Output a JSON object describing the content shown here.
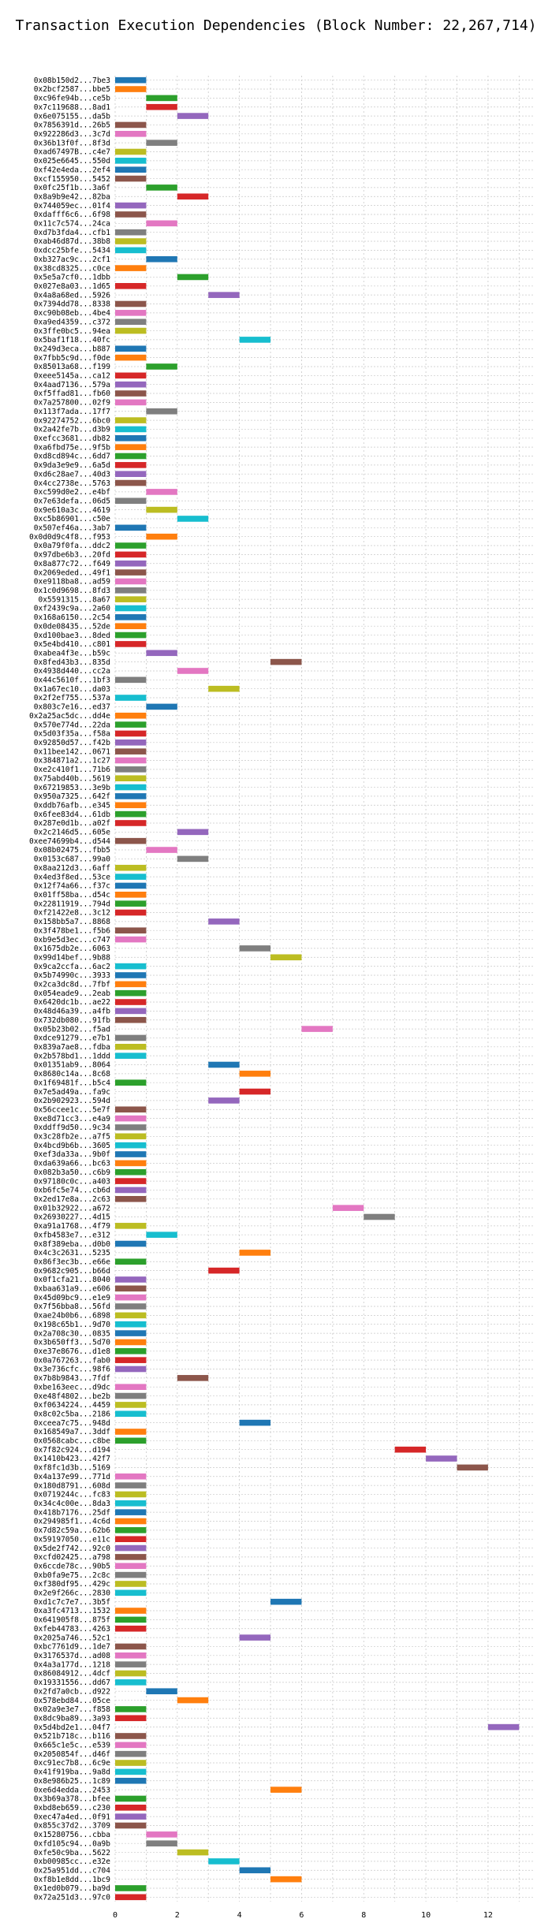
{
  "chart_data": {
    "type": "bar",
    "title": "Transaction Execution Dependencies (Block Number: 22,267,714)",
    "xlabel": "",
    "ylabel": "",
    "xlim": [
      0,
      13.5
    ],
    "xticks": [
      0,
      2,
      4,
      6,
      8,
      10,
      12
    ],
    "grid": "dotted",
    "palette": [
      "#1f77b4",
      "#ff7f0e",
      "#2ca02c",
      "#d62728",
      "#9467bd",
      "#8c564b",
      "#e377c2",
      "#7f7f7f",
      "#bcbd22",
      "#17becf"
    ],
    "transactions": [
      [
        "0x08b150d2...7be3",
        0,
        0
      ],
      [
        "0x2bcf2587...bbe5",
        0,
        1
      ],
      [
        "0xc96fe94b...ce5b",
        1,
        2
      ],
      [
        "0x7c119688...8ad1",
        1,
        3
      ],
      [
        "0x6e075155...da5b",
        2,
        4
      ],
      [
        "0x7856391d...26b5",
        0,
        5
      ],
      [
        "0x922286d3...3c7d",
        0,
        6
      ],
      [
        "0x36b13f0f...8f3d",
        1,
        7
      ],
      [
        "0xad67497B...c4e7",
        0,
        8
      ],
      [
        "0x025e6645...550d",
        0,
        9
      ],
      [
        "0xf42e4eda...2ef4",
        0,
        0
      ],
      [
        "0xcf155950...5452",
        0,
        5
      ],
      [
        "0x0fc25f1b...3a6f",
        1,
        2
      ],
      [
        "0x8a9b9e42...82ba",
        2,
        3
      ],
      [
        "0x744059ec...01f4",
        0,
        4
      ],
      [
        "0xdafff6c6...6f98",
        0,
        5
      ],
      [
        "0x11c7c574...24ca",
        1,
        6
      ],
      [
        "0xd7b3fda4...cfb1",
        0,
        7
      ],
      [
        "0xab46d87d...38b8",
        0,
        8
      ],
      [
        "0xdcc25bfe...5434",
        0,
        9
      ],
      [
        "0xb327ac9c...2cf1",
        1,
        0
      ],
      [
        "0x38cd8325...c0ce",
        0,
        1
      ],
      [
        "0x5e5a7cf0...1dbb",
        2,
        2
      ],
      [
        "0x027e8a03...1d65",
        0,
        3
      ],
      [
        "0x4a8a68ed...5926",
        3,
        4
      ],
      [
        "0x7394dd78...8338",
        0,
        5
      ],
      [
        "0xc90b08eb...4be4",
        0,
        6
      ],
      [
        "0xa9ed4359...c372",
        0,
        7
      ],
      [
        "0x3ffe0bc5...94ea",
        0,
        8
      ],
      [
        "0x5baf1f18...40fc",
        4,
        9
      ],
      [
        "0x249d3eca...b887",
        0,
        0
      ],
      [
        "0x7fbb5c9d...f0de",
        0,
        1
      ],
      [
        "0x85013a68...f199",
        1,
        2
      ],
      [
        "0xeee5145a...ca12",
        0,
        3
      ],
      [
        "0x4aad7136...579a",
        0,
        4
      ],
      [
        "0xf5ffad81...fb60",
        0,
        5
      ],
      [
        "0x7a257800...02f9",
        0,
        6
      ],
      [
        "0x113f7ada...17f7",
        1,
        7
      ],
      [
        "0x92274752...6bc0",
        0,
        8
      ],
      [
        "0x2a42fe7b...d3b9",
        0,
        9
      ],
      [
        "0xefcc3681...db82",
        0,
        0
      ],
      [
        "0xa6fbd75e...9f5b",
        0,
        1
      ],
      [
        "0xd8cd894c...6dd7",
        0,
        2
      ],
      [
        "0x9da3e9e9...6a5d",
        0,
        3
      ],
      [
        "0xd6c28ae7...40d3",
        0,
        4
      ],
      [
        "0x4cc2738e...5763",
        0,
        5
      ],
      [
        "0xc599d0e2...e4bf",
        1,
        6
      ],
      [
        "0x7e63defa...06d5",
        0,
        7
      ],
      [
        "0x9e610a3c...4619",
        1,
        8
      ],
      [
        "0xc5b86901...c50e",
        2,
        9
      ],
      [
        "0x507ef46a...3ab7",
        0,
        0
      ],
      [
        "0x0d0d9c4f8...f953",
        1,
        1
      ],
      [
        "0x0a79f0fa...ddc2",
        0,
        2
      ],
      [
        "0x97dbe6b3...20fd",
        0,
        3
      ],
      [
        "0x8a877c72...f649",
        0,
        4
      ],
      [
        "0x2069eded...49f1",
        0,
        5
      ],
      [
        "0xe9118ba8...ad59",
        0,
        6
      ],
      [
        "0x1c0d9698...8fd3",
        0,
        7
      ],
      [
        "0x5591315...8a67",
        0,
        8
      ],
      [
        "0xf2439c9a...2a60",
        0,
        9
      ],
      [
        "0x168a6150...2c54",
        0,
        0
      ],
      [
        "0x0de08435...52de",
        0,
        1
      ],
      [
        "0xd100bae3...8ded",
        0,
        2
      ],
      [
        "0x5e4bd410...c801",
        0,
        3
      ],
      [
        "0xabea4f3e...b59c",
        1,
        4
      ],
      [
        "0x8fed43b3...835d",
        5,
        5
      ],
      [
        "0x4938d440...cc2a",
        2,
        6
      ],
      [
        "0x44c5610f...1bf3",
        0,
        7
      ],
      [
        "0x1a67ec10...da03",
        3,
        8
      ],
      [
        "0x2f2ef755...537a",
        0,
        9
      ],
      [
        "0x803c7e16...ed37",
        1,
        0
      ],
      [
        "0x2a25ac5dc...dd4e",
        0,
        1
      ],
      [
        "0x570e774d...22da",
        0,
        2
      ],
      [
        "0x5d03f35a...f58a",
        0,
        3
      ],
      [
        "0x92850d57...f42b",
        0,
        4
      ],
      [
        "0x11bee142...0671",
        0,
        5
      ],
      [
        "0x384871a2...1c27",
        0,
        6
      ],
      [
        "0xe2c410f1...71b6",
        0,
        7
      ],
      [
        "0x75abd40b...5619",
        0,
        8
      ],
      [
        "0x67219853...3e9b",
        0,
        9
      ],
      [
        "0x950a7325...642f",
        0,
        0
      ],
      [
        "0xddb76afb...e345",
        0,
        1
      ],
      [
        "0x6fee83d4...61db",
        0,
        2
      ],
      [
        "0x287e0d1b...a02f",
        0,
        3
      ],
      [
        "0x2c2146d5...605e",
        2,
        4
      ],
      [
        "0xee74699b4...d544",
        0,
        5
      ],
      [
        "0x08b02475...fbb5",
        1,
        6
      ],
      [
        "0x0153c687...99a0",
        2,
        7
      ],
      [
        "0x8aa212d3...6aff",
        0,
        8
      ],
      [
        "0x4ed3f8ed...53ce",
        0,
        9
      ],
      [
        "0x12f74a66...f37c",
        0,
        0
      ],
      [
        "0x01ff58ba...d54c",
        0,
        1
      ],
      [
        "0x22811919...794d",
        0,
        2
      ],
      [
        "0xf21422e8...3c12",
        0,
        3
      ],
      [
        "0x158bb5a7...8868",
        3,
        4
      ],
      [
        "0x3f478be1...f5b6",
        0,
        5
      ],
      [
        "0xb9e5d3ec...c747",
        0,
        6
      ],
      [
        "0x1675db2e...6063",
        4,
        7
      ],
      [
        "0x99d14bef...9b88",
        5,
        8
      ],
      [
        "0x9ca2ccfa...6ac2",
        0,
        9
      ],
      [
        "0x5b74990c...3933",
        0,
        0
      ],
      [
        "0x2ca3dc8d...7fbf",
        0,
        1
      ],
      [
        "0x054eade9...2eab",
        0,
        2
      ],
      [
        "0x6420dc1b...ae22",
        0,
        3
      ],
      [
        "0x48d46a39...a4fb",
        0,
        4
      ],
      [
        "0x732db080...91fb",
        0,
        5
      ],
      [
        "0x05b23b02...f5ad",
        6,
        6
      ],
      [
        "0xdce91279...e7b1",
        0,
        7
      ],
      [
        "0x839a7ae8...fdba",
        0,
        8
      ],
      [
        "0x2b578bd1...1ddd",
        0,
        9
      ],
      [
        "0x01351ab9...8064",
        3,
        0
      ],
      [
        "0x8680c14a...8c68",
        4,
        1
      ],
      [
        "0x1f69481f...b5c4",
        0,
        2
      ],
      [
        "0x7e5ad49a...fa9c",
        4,
        3
      ],
      [
        "0x2b902923...594d",
        3,
        4
      ],
      [
        "0x56ccee1c...5e7f",
        0,
        5
      ],
      [
        "0xe8d71cc3...e4a9",
        0,
        6
      ],
      [
        "0xddff9d50...9c34",
        0,
        7
      ],
      [
        "0x3c28fb2e...a7f5",
        0,
        8
      ],
      [
        "0x4bcd9b6b...3605",
        0,
        9
      ],
      [
        "0xef3da33a...9b0f",
        0,
        0
      ],
      [
        "0xda639a66...bc63",
        0,
        1
      ],
      [
        "0x082b3a50...c6b9",
        0,
        2
      ],
      [
        "0x97180c0c...a403",
        0,
        3
      ],
      [
        "0xb6fc5e74...cb6d",
        0,
        4
      ],
      [
        "0x2ed17e8a...2c63",
        0,
        5
      ],
      [
        "0x01b32922...a672",
        7,
        6
      ],
      [
        "0x26930227...4d15",
        8,
        7
      ],
      [
        "0xa91a1768...4f79",
        0,
        8
      ],
      [
        "0xfb4583e7...e312",
        1,
        9
      ],
      [
        "0x8f389eba...d0b0",
        0,
        0
      ],
      [
        "0x4c3c2631...5235",
        4,
        1
      ],
      [
        "0x86f3ec3b...e66e",
        0,
        2
      ],
      [
        "0x9682c905...b66d",
        3,
        3
      ],
      [
        "0x0f1cfa21...8040",
        0,
        4
      ],
      [
        "0xbaa631a9...e606",
        0,
        5
      ],
      [
        "0x45d09bc9...e1e9",
        0,
        6
      ],
      [
        "0x7f56bba8...56fd",
        0,
        7
      ],
      [
        "0xae24b0b6...6898",
        0,
        8
      ],
      [
        "0x198c65b1...9d70",
        0,
        9
      ],
      [
        "0x2a708c30...0835",
        0,
        0
      ],
      [
        "0x3b650ff3...5d70",
        0,
        1
      ],
      [
        "0xe37e8676...d1e8",
        0,
        2
      ],
      [
        "0x0a767263...fab0",
        0,
        3
      ],
      [
        "0x3e736cfc...98f6",
        0,
        4
      ],
      [
        "0x7b8b9843...7fdf",
        2,
        5
      ],
      [
        "0xbe163eec...d9dc",
        0,
        6
      ],
      [
        "0xe48f4802...be2b",
        0,
        7
      ],
      [
        "0xf0634224...4459",
        0,
        8
      ],
      [
        "0x8c02c5ba...2186",
        0,
        9
      ],
      [
        "0xceea7c75...948d",
        4,
        0
      ],
      [
        "0x168549a7...3ddf",
        0,
        1
      ],
      [
        "0x0568cabc...c8be",
        0,
        2
      ],
      [
        "0x7f82c924...d194",
        9,
        3
      ],
      [
        "0x1410b423...42f7",
        10,
        4
      ],
      [
        "0xf8fc1d3b...5169",
        11,
        5
      ],
      [
        "0x4a137e99...771d",
        0,
        6
      ],
      [
        "0x180d8791...608d",
        0,
        7
      ],
      [
        "0x0719244c...fc83",
        0,
        8
      ],
      [
        "0x34c4c00e...8da3",
        0,
        9
      ],
      [
        "0x418b7176...25df",
        0,
        0
      ],
      [
        "0x294985f1...4c6d",
        0,
        1
      ],
      [
        "0x7d82c59a...62b6",
        0,
        2
      ],
      [
        "0x59197050...e11c",
        0,
        3
      ],
      [
        "0x5de2f742...92c0",
        0,
        4
      ],
      [
        "0xcfd02425...a798",
        0,
        5
      ],
      [
        "0x6ccde78c...90b5",
        0,
        6
      ],
      [
        "0xb0fa9e75...2c8c",
        0,
        7
      ],
      [
        "0xf380df95...429c",
        0,
        8
      ],
      [
        "0x2e9f266c...2830",
        0,
        9
      ],
      [
        "0xd1c7c7e7...3b5f",
        5,
        0
      ],
      [
        "0xa3fc4713...1532",
        0,
        1
      ],
      [
        "0x641905f8...875f",
        0,
        2
      ],
      [
        "0xfeb44783...4263",
        0,
        3
      ],
      [
        "0x2025a746...52c1",
        4,
        4
      ],
      [
        "0xbc7761d9...1de7",
        0,
        5
      ],
      [
        "0x3176537d...ad08",
        0,
        6
      ],
      [
        "0x4a3a177d...1218",
        0,
        7
      ],
      [
        "0x86084912...4dcf",
        0,
        8
      ],
      [
        "0x19331556...dd67",
        0,
        9
      ],
      [
        "0x2fd7a0cb...d922",
        1,
        0
      ],
      [
        "0x578ebd84...05ce",
        2,
        1
      ],
      [
        "0x02a9e3e7...f858",
        0,
        2
      ],
      [
        "0x8dc9ba89...3a93",
        0,
        3
      ],
      [
        "0x5d4bd2e1...04f7",
        12,
        4
      ],
      [
        "0x521b718c...b116",
        0,
        5
      ],
      [
        "0x665c1e5c...e539",
        0,
        6
      ],
      [
        "0x2050854f...d46f",
        0,
        7
      ],
      [
        "0xc91ec7b8...6c9e",
        0,
        8
      ],
      [
        "0x41f919ba...9a8d",
        0,
        9
      ],
      [
        "0x8e986b25...1c89",
        0,
        0
      ],
      [
        "0xe6d4edda...2453",
        5,
        1
      ],
      [
        "0x3b69a378...bfee",
        0,
        2
      ],
      [
        "0xbd8eb659...c230",
        0,
        3
      ],
      [
        "0xec47a4ed...0f91",
        0,
        4
      ],
      [
        "0x855c37d2...3709",
        0,
        5
      ],
      [
        "0x15280756...cbba",
        1,
        6
      ],
      [
        "0xfd105c94...0a9b",
        1,
        7
      ],
      [
        "0xfe50c9ba...5622",
        2,
        8
      ],
      [
        "0xb00985cc...e32e",
        3,
        9
      ],
      [
        "0x25a951dd...c704",
        4,
        0
      ],
      [
        "0xf8b1e8dd...1bc9",
        5,
        1
      ],
      [
        "0x1ed0b079...ba9d",
        0,
        2
      ],
      [
        "0x72a251d3...97c0",
        0,
        3
      ]
    ]
  }
}
